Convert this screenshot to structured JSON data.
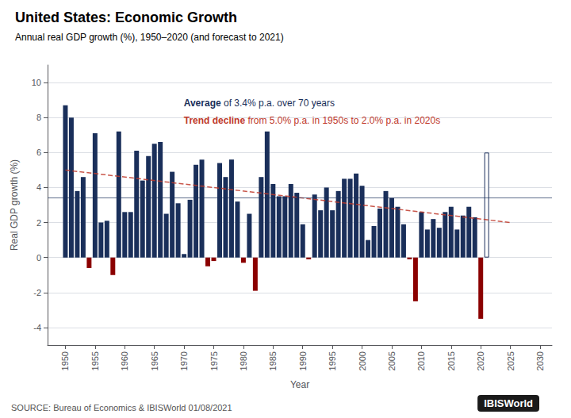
{
  "chart_data": {
    "type": "bar",
    "title": "United States: Economic Growth",
    "subtitle": "Annual real GDP growth (%), 1950–2020 (and forecast to 2021)",
    "xlabel": "Year",
    "ylabel": "Real GDP growth (%)",
    "source": "SOURCE: Bureau of Economics & IBISWorld 01/08/2021",
    "logo": "IBISWorld",
    "color": "#1a2f5a",
    "x": [
      1950,
      1951,
      1952,
      1953,
      1954,
      1955,
      1956,
      1957,
      1958,
      1959,
      1960,
      1961,
      1962,
      1963,
      1964,
      1965,
      1966,
      1967,
      1968,
      1969,
      1970,
      1971,
      1972,
      1973,
      1974,
      1975,
      1976,
      1977,
      1978,
      1979,
      1980,
      1981,
      1982,
      1983,
      1984,
      1985,
      1986,
      1987,
      1988,
      1989,
      1990,
      1991,
      1992,
      1993,
      1994,
      1995,
      1996,
      1997,
      1998,
      1999,
      2000,
      2001,
      2002,
      2003,
      2004,
      2005,
      2006,
      2007,
      2008,
      2009,
      2010,
      2011,
      2012,
      2013,
      2014,
      2015,
      2016,
      2017,
      2018,
      2019,
      2020,
      2021
    ],
    "values": [
      8.7,
      8.0,
      3.8,
      4.6,
      -0.6,
      7.1,
      2.0,
      2.1,
      -1.0,
      7.2,
      2.6,
      2.6,
      6.1,
      4.4,
      5.8,
      6.5,
      6.6,
      2.5,
      4.9,
      3.1,
      0.2,
      3.3,
      5.3,
      5.6,
      -0.5,
      -0.2,
      5.4,
      4.6,
      5.6,
      3.2,
      -0.3,
      2.5,
      -1.9,
      4.6,
      7.2,
      4.2,
      3.5,
      3.5,
      4.2,
      3.7,
      1.9,
      -0.1,
      3.6,
      2.7,
      4.0,
      2.7,
      3.8,
      4.5,
      4.5,
      4.8,
      4.1,
      1.0,
      1.8,
      2.8,
      3.8,
      3.4,
      2.9,
      1.9,
      -0.1,
      -2.5,
      2.6,
      1.6,
      2.2,
      1.7,
      2.6,
      2.9,
      1.6,
      2.4,
      2.9,
      2.3,
      -3.5,
      6.0
    ],
    "colors": [
      "#1a2f5a",
      "#1a2f5a",
      "#1a2f5a",
      "#1a2f5a",
      "#8b0000",
      "#1a2f5a",
      "#1a2f5a",
      "#1a2f5a",
      "#8b0000",
      "#1a2f5a",
      "#1a2f5a",
      "#1a2f5a",
      "#1a2f5a",
      "#1a2f5a",
      "#1a2f5a",
      "#1a2f5a",
      "#1a2f5a",
      "#1a2f5a",
      "#1a2f5a",
      "#1a2f5a",
      "#1a2f5a",
      "#1a2f5a",
      "#1a2f5a",
      "#1a2f5a",
      "#8b0000",
      "#8b0000",
      "#1a2f5a",
      "#1a2f5a",
      "#1a2f5a",
      "#1a2f5a",
      "#8b0000",
      "#1a2f5a",
      "#8b0000",
      "#1a2f5a",
      "#1a2f5a",
      "#1a2f5a",
      "#1a2f5a",
      "#1a2f5a",
      "#1a2f5a",
      "#1a2f5a",
      "#1a2f5a",
      "#8b0000",
      "#1a2f5a",
      "#1a2f5a",
      "#1a2f5a",
      "#1a2f5a",
      "#1a2f5a",
      "#1a2f5a",
      "#1a2f5a",
      "#1a2f5a",
      "#1a2f5a",
      "#1a2f5a",
      "#1a2f5a",
      "#1a2f5a",
      "#1a2f5a",
      "#1a2f5a",
      "#1a2f5a",
      "#1a2f5a",
      "#8b0000",
      "#8b0000",
      "#1a2f5a",
      "#1a2f5a",
      "#1a2f5a",
      "#1a2f5a",
      "#1a2f5a",
      "#1a2f5a",
      "#1a2f5a",
      "#1a2f5a",
      "#1a2f5a",
      "#1a2f5a",
      "#8b0000",
      "#ffffff"
    ],
    "average_line": {
      "value": 3.4,
      "color": "#1a2f5a"
    },
    "trend": {
      "x": [
        1950,
        2025
      ],
      "values": [
        5.0,
        2.0
      ],
      "color": "#c0392b",
      "line_style": "dashed"
    },
    "annotations": [
      {
        "parts": [
          "Average",
          " of 3.4% p.a. over 70 years"
        ],
        "color": "#1a2f5a"
      },
      {
        "parts": [
          "Trend decline",
          " from 5.0% p.a. in 1950s to 2.0% p.a. in 2020s"
        ],
        "color": "#c0392b"
      }
    ],
    "xlim": [
      1947,
      2032
    ],
    "xticks": [
      1950,
      1955,
      1960,
      1965,
      1970,
      1975,
      1980,
      1985,
      1990,
      1995,
      2000,
      2005,
      2010,
      2015,
      2020,
      2025,
      2030
    ],
    "ylim": [
      -5,
      11
    ],
    "yticks": [
      -4,
      -2,
      0,
      2,
      4,
      6,
      8,
      10
    ],
    "grid": true
  }
}
